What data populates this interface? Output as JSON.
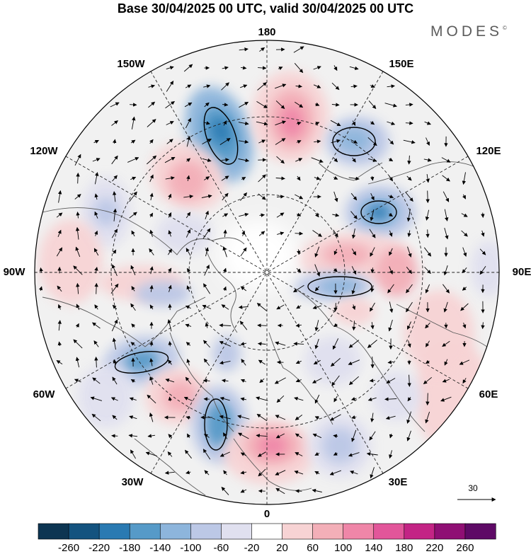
{
  "title": "Base 30/04/2025 00 UTC, valid 30/04/2025 00 UTC",
  "brand": "MODES",
  "brand_mark": "©",
  "map": {
    "projection": "north polar stereographic",
    "longitude_labels": [
      "180",
      "150E",
      "120E",
      "90E",
      "60E",
      "30E",
      "0",
      "30W",
      "60W",
      "90W",
      "120W",
      "150W"
    ],
    "fields": [
      "height anomaly (shaded)",
      "wind vectors (arrows)"
    ],
    "reference_vector_value": "30"
  },
  "colorbar": {
    "colors": [
      "#0d3552",
      "#14537f",
      "#2a7ab2",
      "#569ac8",
      "#8db5dc",
      "#bcc8e6",
      "#e0e0ef",
      "#ffffff",
      "#f7d3d4",
      "#f3afb8",
      "#ef86a8",
      "#e2569a",
      "#c32485",
      "#8f0f74",
      "#5e0a66"
    ],
    "tick_labels": [
      "-260",
      "-220",
      "-180",
      "-140",
      "-100",
      "-60",
      "-20",
      "20",
      "60",
      "100",
      "140",
      "180",
      "220",
      "260"
    ]
  }
}
